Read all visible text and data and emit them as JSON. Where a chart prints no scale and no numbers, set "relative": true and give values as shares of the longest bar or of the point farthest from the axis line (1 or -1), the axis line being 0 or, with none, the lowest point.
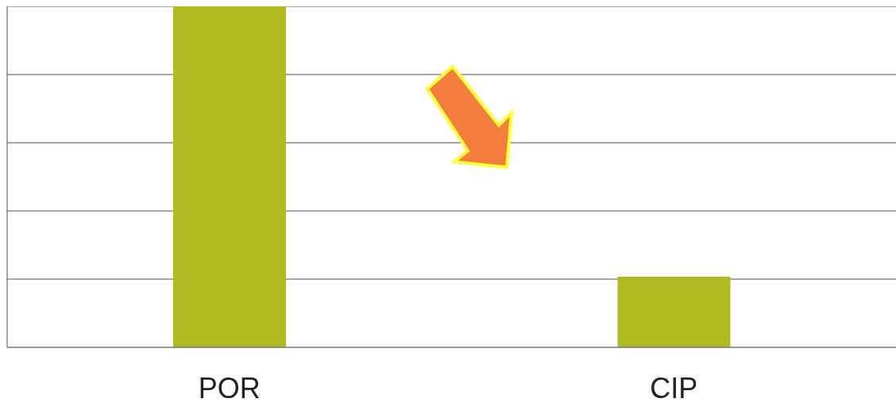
{
  "chart_data": {
    "type": "bar",
    "categories": [
      "POR",
      "CIP"
    ],
    "values": [
      1,
      0.207
    ],
    "color": "#b2ba22",
    "relative": true,
    "grid": "y"
  }
}
